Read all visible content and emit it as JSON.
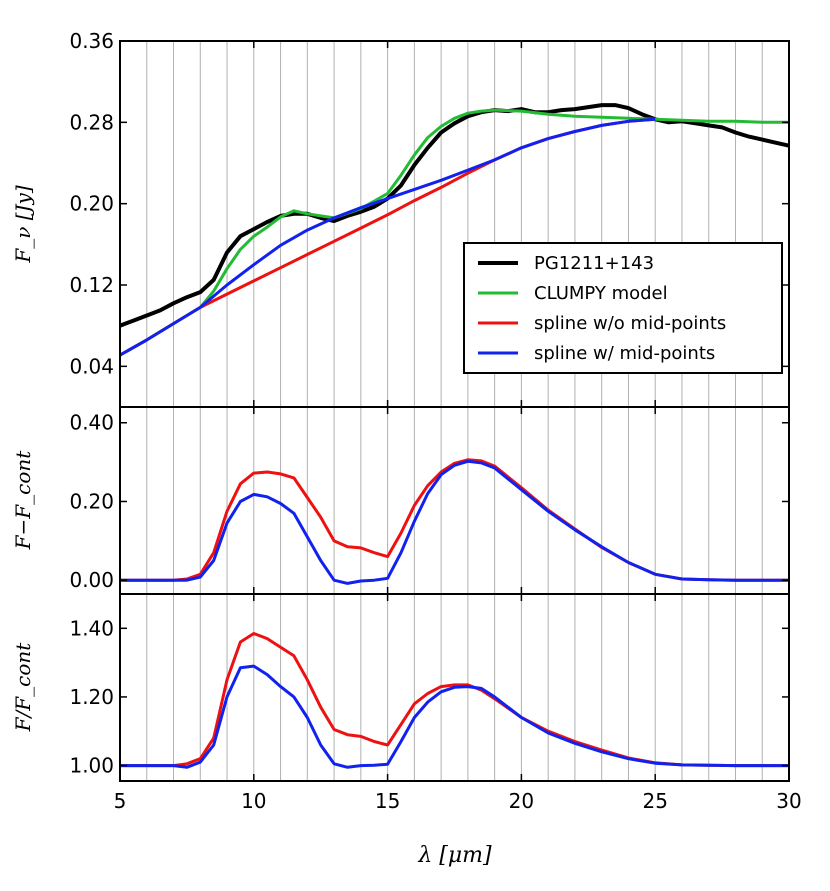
{
  "chart_data": [
    {
      "type": "line",
      "panel": "top",
      "ylabel": "F_ν [Jy]",
      "xlim": [
        5,
        30
      ],
      "ylim": [
        0,
        0.36
      ],
      "yticks": [
        "0.04",
        "0.12",
        "0.20",
        "0.28",
        "0.36"
      ],
      "legend": {
        "placement": "lower-right",
        "entries": [
          "PG1211+143",
          "CLUMPY model",
          "spline w/o mid-points",
          "spline w/ mid-points"
        ]
      },
      "series": [
        {
          "name": "PG1211+143",
          "color": "#000000",
          "x": [
            5.0,
            5.5,
            6.0,
            6.5,
            7.0,
            7.5,
            8.0,
            8.5,
            9.0,
            9.5,
            10.0,
            10.5,
            11.0,
            11.5,
            12.0,
            12.5,
            13.0,
            13.5,
            14.0,
            14.5,
            15.0,
            15.5,
            16.0,
            16.5,
            17.0,
            17.5,
            18.0,
            18.5,
            19.0,
            19.5,
            20.0,
            20.5,
            21.0,
            21.5,
            22.0,
            22.5,
            23.0,
            23.5,
            24.0,
            24.5,
            25.0,
            25.5,
            26.0,
            26.5,
            27.0,
            27.5,
            28.0,
            28.5,
            29.0,
            29.5,
            30.0
          ],
          "y": [
            0.08,
            0.085,
            0.09,
            0.095,
            0.102,
            0.108,
            0.113,
            0.125,
            0.152,
            0.168,
            0.175,
            0.182,
            0.188,
            0.19,
            0.19,
            0.186,
            0.183,
            0.188,
            0.192,
            0.197,
            0.205,
            0.218,
            0.238,
            0.255,
            0.27,
            0.279,
            0.286,
            0.29,
            0.292,
            0.291,
            0.293,
            0.29,
            0.29,
            0.292,
            0.293,
            0.295,
            0.297,
            0.297,
            0.294,
            0.288,
            0.283,
            0.28,
            0.281,
            0.279,
            0.277,
            0.275,
            0.27,
            0.266,
            0.263,
            0.26,
            0.257
          ]
        },
        {
          "name": "CLUMPY model",
          "color": "#22bb33",
          "x": [
            5.0,
            6.0,
            7.0,
            8.0,
            8.5,
            9.0,
            9.5,
            10.0,
            10.5,
            11.0,
            11.5,
            12.0,
            13.0,
            14.0,
            15.0,
            15.5,
            16.0,
            16.5,
            17.0,
            17.5,
            18.0,
            18.5,
            19.0,
            20.0,
            21.0,
            22.0,
            23.0,
            24.0,
            25.0,
            26.0,
            27.0,
            28.0,
            29.0,
            30.0
          ],
          "y": [
            0.051,
            0.066,
            0.082,
            0.098,
            0.114,
            0.136,
            0.155,
            0.168,
            0.177,
            0.187,
            0.193,
            0.19,
            0.186,
            0.195,
            0.21,
            0.228,
            0.248,
            0.265,
            0.276,
            0.284,
            0.289,
            0.291,
            0.292,
            0.291,
            0.288,
            0.286,
            0.285,
            0.284,
            0.283,
            0.282,
            0.281,
            0.281,
            0.28,
            0.28
          ]
        },
        {
          "name": "spline w/o mid-points",
          "color": "#ee1111",
          "x": [
            5.0,
            6.0,
            7.0,
            8.0,
            9.0,
            10.0,
            11.0,
            12.0,
            13.0,
            14.0,
            15.0,
            16.0,
            17.0,
            18.0,
            19.0,
            20.0,
            21.0,
            22.0,
            23.0,
            24.0,
            25.0
          ],
          "y": [
            0.051,
            0.066,
            0.082,
            0.098,
            0.111,
            0.124,
            0.137,
            0.15,
            0.163,
            0.176,
            0.189,
            0.203,
            0.216,
            0.23,
            0.243,
            0.255,
            0.264,
            0.271,
            0.277,
            0.281,
            0.283
          ]
        },
        {
          "name": "spline w/ mid-points",
          "color": "#1122ee",
          "x": [
            5.0,
            6.0,
            7.0,
            8.0,
            9.0,
            10.0,
            11.0,
            12.0,
            13.0,
            14.0,
            15.0,
            16.0,
            17.0,
            18.0,
            19.0,
            20.0,
            21.0,
            22.0,
            23.0,
            24.0,
            25.0
          ],
          "y": [
            0.051,
            0.066,
            0.082,
            0.098,
            0.12,
            0.14,
            0.159,
            0.174,
            0.186,
            0.196,
            0.205,
            0.214,
            0.223,
            0.233,
            0.243,
            0.255,
            0.264,
            0.271,
            0.277,
            0.281,
            0.283
          ]
        }
      ]
    },
    {
      "type": "line",
      "panel": "middle",
      "ylabel": "F−F_cont",
      "xlim": [
        5,
        30
      ],
      "ylim": [
        -0.035,
        0.44
      ],
      "yticks": [
        "0.00",
        "0.20",
        "0.40"
      ],
      "series": [
        {
          "name": "spline w/o mid-points",
          "color": "#ee1111",
          "x": [
            5.0,
            6.0,
            7.0,
            7.5,
            8.0,
            8.5,
            9.0,
            9.5,
            10.0,
            10.5,
            11.0,
            11.5,
            12.0,
            12.5,
            13.0,
            13.5,
            14.0,
            14.5,
            15.0,
            15.5,
            16.0,
            16.5,
            17.0,
            17.5,
            18.0,
            18.5,
            19.0,
            20.0,
            21.0,
            22.0,
            23.0,
            24.0,
            25.0,
            26.0,
            27.0,
            28.0,
            29.0,
            30.0
          ],
          "y": [
            0,
            0,
            0,
            0.003,
            0.015,
            0.07,
            0.175,
            0.245,
            0.272,
            0.275,
            0.27,
            0.26,
            0.21,
            0.16,
            0.1,
            0.085,
            0.082,
            0.07,
            0.06,
            0.12,
            0.19,
            0.24,
            0.275,
            0.297,
            0.306,
            0.303,
            0.29,
            0.235,
            0.178,
            0.13,
            0.083,
            0.045,
            0.015,
            0.003,
            0.001,
            0,
            0,
            0
          ]
        },
        {
          "name": "spline w/ mid-points",
          "color": "#1122ee",
          "x": [
            5.0,
            6.0,
            7.0,
            7.5,
            8.0,
            8.5,
            9.0,
            9.5,
            10.0,
            10.5,
            11.0,
            11.5,
            12.0,
            12.5,
            13.0,
            13.5,
            14.0,
            14.5,
            15.0,
            15.5,
            16.0,
            16.5,
            17.0,
            17.5,
            18.0,
            18.5,
            19.0,
            20.0,
            21.0,
            22.0,
            23.0,
            24.0,
            25.0,
            26.0,
            27.0,
            28.0,
            29.0,
            30.0
          ],
          "y": [
            0,
            0,
            0,
            0,
            0.008,
            0.05,
            0.145,
            0.2,
            0.218,
            0.212,
            0.195,
            0.17,
            0.11,
            0.05,
            0,
            -0.008,
            -0.002,
            0,
            0.005,
            0.07,
            0.15,
            0.22,
            0.268,
            0.292,
            0.302,
            0.298,
            0.285,
            0.23,
            0.175,
            0.128,
            0.085,
            0.045,
            0.015,
            0.003,
            0.001,
            0,
            0,
            0
          ]
        }
      ]
    },
    {
      "type": "line",
      "panel": "bottom",
      "ylabel": "F/F_cont",
      "xlabel": "λ [μm]",
      "xlim": [
        5,
        30
      ],
      "xticks": [
        "5",
        "10",
        "15",
        "20",
        "25",
        "30"
      ],
      "ylim": [
        0.955,
        1.5
      ],
      "yticks": [
        "1.00",
        "1.20",
        "1.40"
      ],
      "series": [
        {
          "name": "spline w/o mid-points",
          "color": "#ee1111",
          "x": [
            5.0,
            6.0,
            7.0,
            7.5,
            8.0,
            8.5,
            9.0,
            9.5,
            10.0,
            10.5,
            11.0,
            11.5,
            12.0,
            12.5,
            13.0,
            13.5,
            14.0,
            14.5,
            15.0,
            15.5,
            16.0,
            16.5,
            17.0,
            17.5,
            18.0,
            18.5,
            19.0,
            20.0,
            21.0,
            22.0,
            23.0,
            24.0,
            25.0,
            26.0,
            27.0,
            28.0,
            29.0,
            30.0
          ],
          "y": [
            1,
            1,
            1,
            1.005,
            1.02,
            1.08,
            1.25,
            1.36,
            1.385,
            1.37,
            1.345,
            1.32,
            1.25,
            1.17,
            1.105,
            1.09,
            1.085,
            1.07,
            1.06,
            1.12,
            1.18,
            1.21,
            1.23,
            1.235,
            1.235,
            1.22,
            1.195,
            1.14,
            1.1,
            1.07,
            1.045,
            1.022,
            1.008,
            1.002,
            1.001,
            1,
            1,
            1
          ]
        },
        {
          "name": "spline w/ mid-points",
          "color": "#1122ee",
          "x": [
            5.0,
            6.0,
            7.0,
            7.5,
            8.0,
            8.5,
            9.0,
            9.5,
            10.0,
            10.5,
            11.0,
            11.5,
            12.0,
            12.5,
            13.0,
            13.5,
            14.0,
            14.5,
            15.0,
            15.5,
            16.0,
            16.5,
            17.0,
            17.5,
            18.0,
            18.5,
            19.0,
            20.0,
            21.0,
            22.0,
            23.0,
            24.0,
            25.0,
            26.0,
            27.0,
            28.0,
            29.0,
            30.0
          ],
          "y": [
            1,
            1,
            1,
            0.995,
            1.01,
            1.06,
            1.2,
            1.285,
            1.29,
            1.265,
            1.23,
            1.2,
            1.14,
            1.06,
            1.005,
            0.995,
            1.0,
            1.001,
            1.004,
            1.07,
            1.14,
            1.185,
            1.215,
            1.228,
            1.23,
            1.225,
            1.2,
            1.14,
            1.095,
            1.065,
            1.04,
            1.02,
            1.007,
            1.002,
            1.001,
            1,
            1,
            1
          ]
        }
      ]
    }
  ]
}
